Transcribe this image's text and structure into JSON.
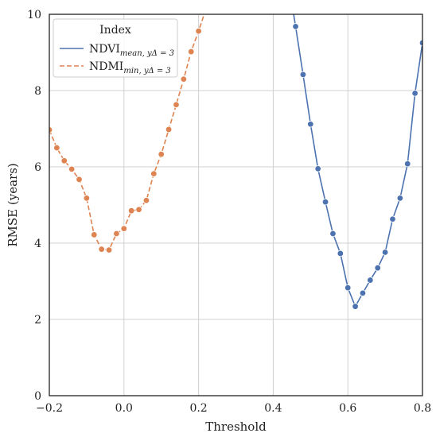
{
  "chart_data": {
    "type": "line",
    "xlabel": "Threshold",
    "ylabel": "RMSE (years)",
    "xlim": [
      -0.2,
      0.8
    ],
    "ylim": [
      0,
      10
    ],
    "xticks": [
      -0.2,
      0.0,
      0.2,
      0.4,
      0.6,
      0.8
    ],
    "xtick_labels": [
      "−0.2",
      "0.0",
      "0.2",
      "0.4",
      "0.6",
      "0.8"
    ],
    "yticks": [
      0,
      2,
      4,
      6,
      8,
      10
    ],
    "ytick_labels": [
      "0",
      "2",
      "4",
      "6",
      "8",
      "10"
    ],
    "grid": true,
    "legend": {
      "title": "Index",
      "position": "top-left"
    },
    "series": [
      {
        "name": "NDVI",
        "name_sub": "mean, yΔ = 3",
        "color": "#4c72b0",
        "dash": "solid",
        "x": [
          0.44,
          0.46,
          0.48,
          0.5,
          0.52,
          0.54,
          0.56,
          0.58,
          0.6,
          0.62,
          0.64,
          0.66,
          0.68,
          0.7,
          0.72,
          0.74,
          0.76,
          0.78,
          0.8
        ],
        "y": [
          10.9,
          9.68,
          8.42,
          7.12,
          5.95,
          5.08,
          4.25,
          3.73,
          2.83,
          2.34,
          2.69,
          3.03,
          3.35,
          3.76,
          4.63,
          5.18,
          6.08,
          7.93,
          9.25
        ]
      },
      {
        "name": "NDMI",
        "name_sub": "min, yΔ = 3",
        "color": "#dd8452",
        "dash": "dashed",
        "x": [
          -0.2,
          -0.18,
          -0.16,
          -0.14,
          -0.12,
          -0.1,
          -0.08,
          -0.06,
          -0.04,
          -0.02,
          0.0,
          0.02,
          0.04,
          0.06,
          0.08,
          0.1,
          0.12,
          0.14,
          0.16,
          0.18,
          0.2,
          0.22
        ],
        "y": [
          6.97,
          6.5,
          6.16,
          5.94,
          5.67,
          5.18,
          4.22,
          3.84,
          3.82,
          4.25,
          4.38,
          4.85,
          4.88,
          5.12,
          5.82,
          6.33,
          6.98,
          7.63,
          8.3,
          9.02,
          9.56,
          10.15
        ]
      }
    ]
  }
}
